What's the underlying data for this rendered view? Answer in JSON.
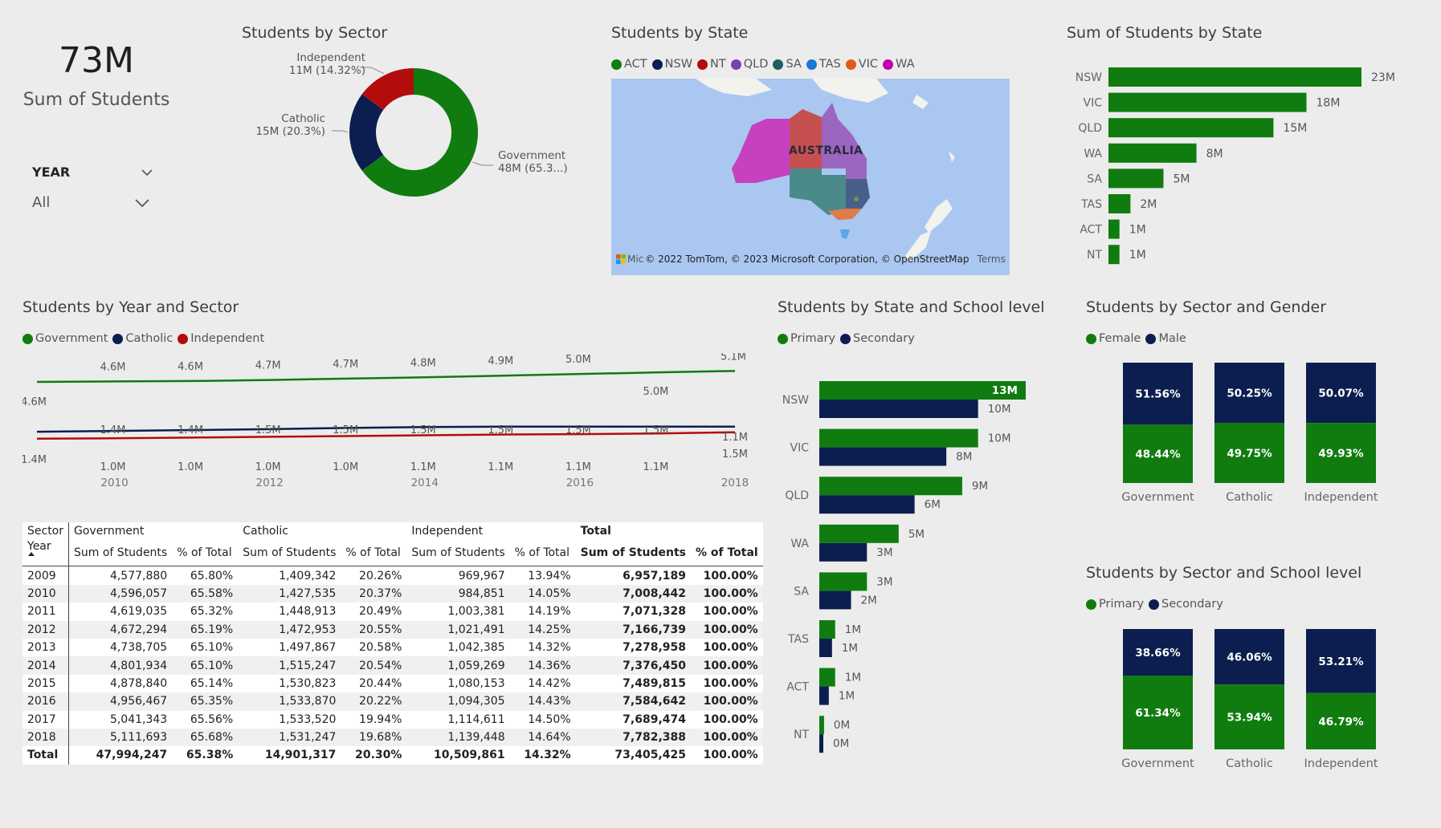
{
  "colors": {
    "government": "#107c10",
    "catholic": "#0b1e4f",
    "independent": "#b30c0c",
    "primary": "#107c10",
    "secondary": "#0b1e4f",
    "female": "#107c10",
    "male": "#0b1e4f"
  },
  "card": {
    "value": "73M",
    "label": "Sum of Students"
  },
  "slicer": {
    "title": "YEAR",
    "value": "All"
  },
  "donut": {
    "title": "Students by Sector",
    "chart_data": {
      "type": "pie",
      "slices": [
        {
          "name": "Government",
          "value": 48,
          "label": "Government",
          "sublabel": "48M (65.3...)",
          "color": "#107c10"
        },
        {
          "name": "Catholic",
          "value": 15,
          "label": "Catholic",
          "sublabel": "15M (20.3%)",
          "color": "#0b1e4f"
        },
        {
          "name": "Independent",
          "value": 11,
          "label": "Independent",
          "sublabel": "11M (14.32%)",
          "color": "#b30c0c"
        }
      ]
    }
  },
  "map": {
    "title": "Students by State",
    "legend": [
      {
        "label": "ACT",
        "color": "#107c10"
      },
      {
        "label": "NSW",
        "color": "#0b1e4f"
      },
      {
        "label": "NT",
        "color": "#b30c0c"
      },
      {
        "label": "QLD",
        "color": "#7a3fb0"
      },
      {
        "label": "SA",
        "color": "#1c5e62"
      },
      {
        "label": "TAS",
        "color": "#1a78d6"
      },
      {
        "label": "VIC",
        "color": "#e05a1a"
      },
      {
        "label": "WA",
        "color": "#c000b0"
      }
    ],
    "country_label": "AUSTRALIA",
    "logo_text": "Mic",
    "copyright": "© 2022 TomTom, © 2023 Microsoft Corporation, © OpenStreetMap",
    "terms": "Terms"
  },
  "state_bar": {
    "title": "Sum of Students by State",
    "chart_data": {
      "type": "bar",
      "orientation": "horizontal",
      "categories": [
        "NSW",
        "VIC",
        "QLD",
        "WA",
        "SA",
        "TAS",
        "ACT",
        "NT"
      ],
      "values": [
        23,
        18,
        15,
        8,
        5,
        2,
        1,
        1
      ],
      "data_labels": [
        "23M",
        "18M",
        "15M",
        "8M",
        "5M",
        "2M",
        "1M",
        "1M"
      ],
      "xlim": [
        0,
        23
      ]
    }
  },
  "line": {
    "title": "Students by Year and Sector",
    "legend": [
      "Government",
      "Catholic",
      "Independent"
    ],
    "chart_data": {
      "type": "line",
      "x": [
        2009,
        2010,
        2011,
        2012,
        2013,
        2014,
        2015,
        2016,
        2017,
        2018
      ],
      "x_ticks": [
        "2010",
        "2012",
        "2014",
        "2016",
        "2018"
      ],
      "series": [
        {
          "name": "Government",
          "values": [
            4.58,
            4.6,
            4.62,
            4.67,
            4.74,
            4.8,
            4.88,
            4.96,
            5.04,
            5.11
          ],
          "labels": [
            "4.6M",
            "4.6M",
            "4.6M",
            "4.7M",
            "4.7M",
            "4.8M",
            "4.9M",
            "5.0M",
            "5.0M",
            "5.1M"
          ]
        },
        {
          "name": "Catholic",
          "values": [
            1.41,
            1.43,
            1.45,
            1.47,
            1.5,
            1.52,
            1.53,
            1.53,
            1.53,
            1.53
          ],
          "labels": [
            "1.4M",
            "1.4M",
            "1.4M",
            "1.5M",
            "1.5M",
            "1.5M",
            "1.5M",
            "1.5M",
            "1.5M",
            "1.5M"
          ]
        },
        {
          "name": "Independent",
          "values": [
            0.97,
            0.98,
            1.0,
            1.02,
            1.04,
            1.06,
            1.08,
            1.09,
            1.11,
            1.14
          ],
          "labels": [
            "",
            "1.0M",
            "1.0M",
            "1.0M",
            "1.0M",
            "1.1M",
            "1.1M",
            "1.1M",
            "1.1M",
            "1.1M"
          ]
        }
      ]
    }
  },
  "matrix": {
    "corner_top": "Sector",
    "corner_bottom": "Year",
    "groups": [
      "Government",
      "Catholic",
      "Independent",
      "Total"
    ],
    "subheaders": [
      "Sum of Students",
      "% of Total"
    ],
    "rows": [
      [
        "2009",
        "4,577,880",
        "65.80%",
        "1,409,342",
        "20.26%",
        "969,967",
        "13.94%",
        "6,957,189",
        "100.00%"
      ],
      [
        "2010",
        "4,596,057",
        "65.58%",
        "1,427,535",
        "20.37%",
        "984,851",
        "14.05%",
        "7,008,442",
        "100.00%"
      ],
      [
        "2011",
        "4,619,035",
        "65.32%",
        "1,448,913",
        "20.49%",
        "1,003,381",
        "14.19%",
        "7,071,328",
        "100.00%"
      ],
      [
        "2012",
        "4,672,294",
        "65.19%",
        "1,472,953",
        "20.55%",
        "1,021,491",
        "14.25%",
        "7,166,739",
        "100.00%"
      ],
      [
        "2013",
        "4,738,705",
        "65.10%",
        "1,497,867",
        "20.58%",
        "1,042,385",
        "14.32%",
        "7,278,958",
        "100.00%"
      ],
      [
        "2014",
        "4,801,934",
        "65.10%",
        "1,515,247",
        "20.54%",
        "1,059,269",
        "14.36%",
        "7,376,450",
        "100.00%"
      ],
      [
        "2015",
        "4,878,840",
        "65.14%",
        "1,530,823",
        "20.44%",
        "1,080,153",
        "14.42%",
        "7,489,815",
        "100.00%"
      ],
      [
        "2016",
        "4,956,467",
        "65.35%",
        "1,533,870",
        "20.22%",
        "1,094,305",
        "14.43%",
        "7,584,642",
        "100.00%"
      ],
      [
        "2017",
        "5,041,343",
        "65.56%",
        "1,533,520",
        "19.94%",
        "1,114,611",
        "14.50%",
        "7,689,474",
        "100.00%"
      ],
      [
        "2018",
        "5,111,693",
        "65.68%",
        "1,531,247",
        "19.68%",
        "1,139,448",
        "14.64%",
        "7,782,388",
        "100.00%"
      ]
    ],
    "total": [
      "Total",
      "47,994,247",
      "65.38%",
      "14,901,317",
      "20.30%",
      "10,509,861",
      "14.32%",
      "73,405,425",
      "100.00%"
    ]
  },
  "state_level": {
    "title": "Students by State and School level",
    "legend": [
      "Primary",
      "Secondary"
    ],
    "chart_data": {
      "type": "bar",
      "orientation": "horizontal",
      "categories": [
        "NSW",
        "VIC",
        "QLD",
        "WA",
        "SA",
        "TAS",
        "ACT",
        "NT"
      ],
      "series": [
        {
          "name": "Primary",
          "values": [
            13,
            10,
            9,
            5,
            3,
            1,
            1,
            0.3
          ],
          "labels": [
            "13M",
            "10M",
            "9M",
            "5M",
            "3M",
            "1M",
            "1M",
            "0M"
          ]
        },
        {
          "name": "Secondary",
          "values": [
            10,
            8,
            6,
            3,
            2,
            0.8,
            0.6,
            0.2
          ],
          "labels": [
            "10M",
            "8M",
            "6M",
            "3M",
            "2M",
            "1M",
            "1M",
            "0M"
          ]
        }
      ],
      "xlim": [
        0,
        13
      ]
    }
  },
  "gender": {
    "title": "Students by Sector and Gender",
    "legend": [
      "Female",
      "Male"
    ],
    "chart_data": {
      "type": "bar",
      "stacked": "100%",
      "categories": [
        "Government",
        "Catholic",
        "Independent"
      ],
      "series": [
        {
          "name": "Female",
          "values": [
            48.44,
            49.75,
            49.93
          ],
          "labels": [
            "48.44%",
            "49.75%",
            "49.93%"
          ]
        },
        {
          "name": "Male",
          "values": [
            51.56,
            50.25,
            50.07
          ],
          "labels": [
            "51.56%",
            "50.25%",
            "50.07%"
          ]
        }
      ]
    }
  },
  "sector_level": {
    "title": "Students by Sector and School level",
    "legend": [
      "Primary",
      "Secondary"
    ],
    "chart_data": {
      "type": "bar",
      "stacked": "100%",
      "categories": [
        "Government",
        "Catholic",
        "Independent"
      ],
      "series": [
        {
          "name": "Primary",
          "values": [
            61.34,
            53.94,
            46.79
          ],
          "labels": [
            "61.34%",
            "53.94%",
            "46.79%"
          ]
        },
        {
          "name": "Secondary",
          "values": [
            38.66,
            46.06,
            53.21
          ],
          "labels": [
            "38.66%",
            "46.06%",
            "53.21%"
          ]
        }
      ]
    }
  }
}
